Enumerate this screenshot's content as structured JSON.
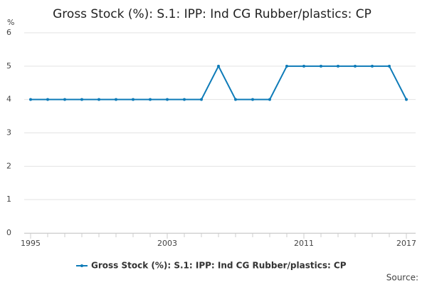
{
  "chart_data": {
    "type": "line",
    "title": "Gross Stock (%): S.1: IPP: Ind CG Rubber/plastics: CP",
    "y_label": "%",
    "source": "Source:",
    "x": [
      1995,
      1996,
      1997,
      1998,
      1999,
      2000,
      2001,
      2002,
      2003,
      2004,
      2005,
      2006,
      2007,
      2008,
      2009,
      2010,
      2011,
      2012,
      2013,
      2014,
      2015,
      2016,
      2017
    ],
    "series": [
      {
        "name": "Gross Stock (%): S.1: IPP: Ind CG Rubber/plastics: CP",
        "color": "#0e7bb8",
        "values": [
          4,
          4,
          4,
          4,
          4,
          4,
          4,
          4,
          4,
          4,
          4,
          5,
          4,
          4,
          4,
          5,
          5,
          5,
          5,
          5,
          5,
          5,
          4
        ]
      }
    ],
    "xlim": [
      1995,
      2017
    ],
    "xticks": [
      1995,
      2003,
      2011,
      2017
    ],
    "ylim": [
      0,
      6
    ],
    "yticks": [
      0,
      1,
      2,
      3,
      4,
      5,
      6
    ],
    "grid": true
  }
}
